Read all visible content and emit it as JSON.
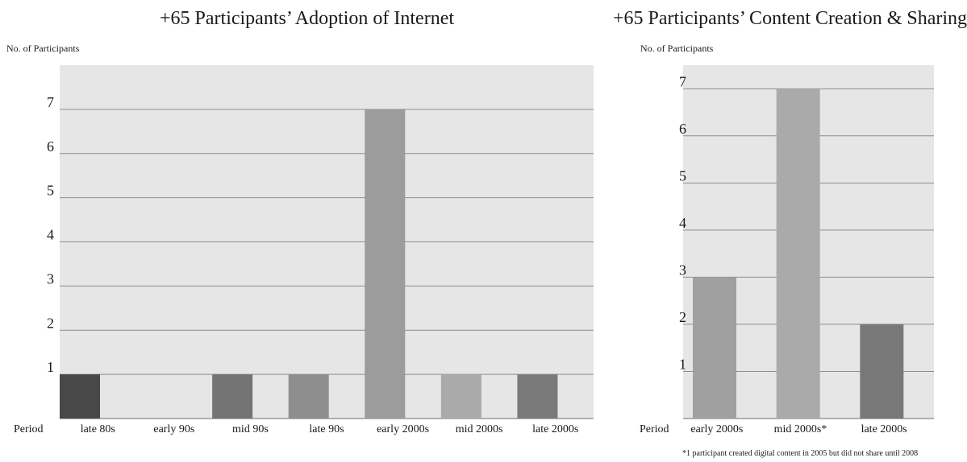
{
  "chart_data": [
    {
      "type": "bar",
      "title": "+65 Participants’ Adoption of Internet",
      "ylabel": "No. of Participants",
      "xlabel": "Period",
      "categories": [
        "late 80s",
        "early 90s",
        "mid 90s",
        "late 90s",
        "early 2000s",
        "mid 2000s",
        "late 2000s"
      ],
      "values": [
        1,
        0,
        1,
        1,
        7,
        1,
        1
      ],
      "bar_colors": [
        "#484848",
        "#e6e6e6",
        "#747474",
        "#8e8e8e",
        "#9c9c9c",
        "#aaaaaa",
        "#7a7a7a"
      ],
      "yticks": [
        1,
        2,
        3,
        4,
        5,
        6,
        7
      ],
      "ylim": [
        0,
        8
      ],
      "grid": true,
      "plot_background": "#e6e6e6",
      "legend": "none"
    },
    {
      "type": "bar",
      "title": "+65 Participants’ Content Creation & Sharing",
      "ylabel": "No. of Participants",
      "xlabel": "Period",
      "categories": [
        "early 2000s",
        "mid 2000s*",
        "late 2000s"
      ],
      "values": [
        3,
        7,
        2
      ],
      "bar_colors": [
        "#a0a0a0",
        "#aaaaaa",
        "#787878"
      ],
      "yticks": [
        1,
        2,
        3,
        4,
        5,
        6,
        7
      ],
      "ylim": [
        0,
        7.5
      ],
      "grid": true,
      "plot_background": "#e6e6e6",
      "legend": "none",
      "footnote": "*1 participant created digital content in 2005 but did not share until 2008"
    }
  ]
}
